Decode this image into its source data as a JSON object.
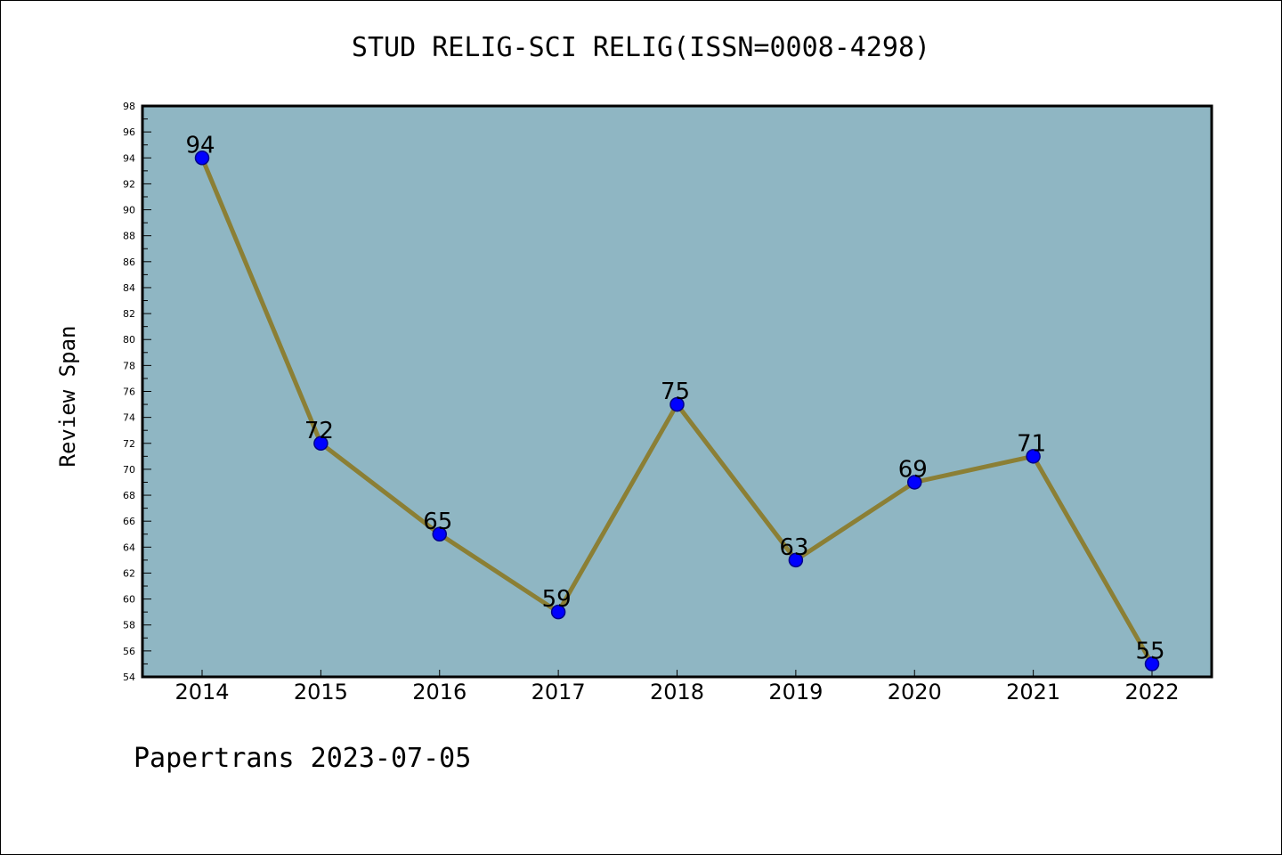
{
  "chart_data": {
    "type": "line",
    "title": "STUD RELIG-SCI RELIG(ISSN=0008-4298)",
    "xlabel": "",
    "ylabel": "Review Span",
    "categories": [
      "2014",
      "2015",
      "2016",
      "2017",
      "2018",
      "2019",
      "2020",
      "2021",
      "2022"
    ],
    "series": [
      {
        "values": [
          94,
          72,
          65,
          59,
          75,
          63,
          69,
          71,
          55
        ]
      }
    ],
    "data_labels": [
      "94",
      "72",
      "65",
      "59",
      "75",
      "63",
      "69",
      "71",
      "55"
    ],
    "ylim": [
      54,
      98
    ],
    "y_ticks": [
      "54",
      "56",
      "58",
      "60",
      "62",
      "64",
      "66",
      "68",
      "70",
      "72",
      "74",
      "76",
      "78",
      "80",
      "82",
      "84",
      "86",
      "88",
      "90",
      "92",
      "94",
      "96",
      "98"
    ],
    "grid": false,
    "legend": "none",
    "colors": {
      "plot_background": "#8fb6c3",
      "line": "#8b7f35",
      "marker": "#0000ff",
      "marker_edge": "#00008b"
    }
  },
  "footer": {
    "note": "Papertrans 2023-07-05"
  }
}
